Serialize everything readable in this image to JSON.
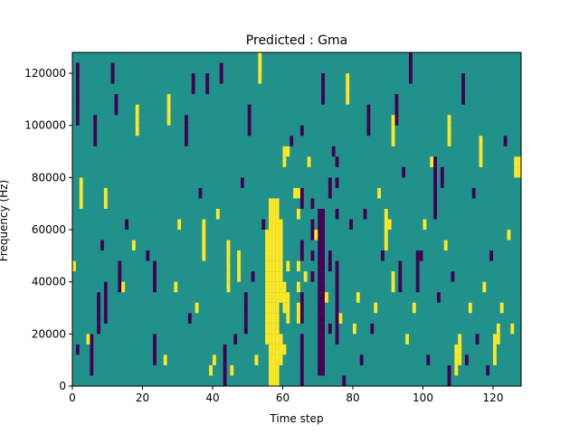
{
  "chart_data": {
    "type": "heatmap",
    "title": "Predicted : Gma",
    "xlabel": "Time step",
    "ylabel": "Frequency (Hz)",
    "xlim": [
      0,
      128
    ],
    "ylim": [
      0,
      128000
    ],
    "x_ticks": [
      0,
      20,
      40,
      60,
      80,
      100,
      120
    ],
    "y_ticks": [
      0,
      20000,
      40000,
      60000,
      80000,
      100000,
      120000
    ],
    "grid": false,
    "legend": "none",
    "colors": {
      "background_value": "#21918c",
      "low_value": "#440154",
      "high_value": "#fde725"
    },
    "cells": [
      {
        "t": 57,
        "f": [
          4000,
          8000,
          12000,
          16000,
          20000,
          24000,
          28000,
          32000,
          36000,
          40000,
          44000,
          48000,
          52000,
          56000,
          60000,
          64000,
          68000,
          72000
        ],
        "v": "high"
      },
      {
        "t": 58,
        "f": [
          4000,
          8000,
          12000,
          16000,
          20000,
          24000,
          28000,
          32000,
          36000,
          40000,
          44000,
          48000,
          52000,
          56000,
          60000,
          64000,
          68000,
          72000
        ],
        "v": "high"
      },
      {
        "t": 59,
        "f": [
          4000,
          8000,
          12000,
          16000,
          20000,
          24000,
          28000,
          32000,
          36000,
          40000,
          44000,
          48000,
          52000,
          56000,
          60000,
          64000,
          68000,
          72000
        ],
        "v": "high"
      },
      {
        "t": 56,
        "f": [
          20000,
          24000,
          28000,
          32000,
          36000,
          40000,
          44000,
          48000,
          52000,
          56000,
          60000
        ],
        "v": "high"
      },
      {
        "t": 60,
        "f": [
          12000,
          16000,
          20000,
          36000,
          40000,
          44000,
          48000,
          52000,
          56000,
          60000,
          64000
        ],
        "v": "high"
      },
      {
        "t": 61,
        "f": [
          16000,
          32000,
          36000,
          40000,
          88000,
          92000
        ],
        "v": "high"
      },
      {
        "t": 62,
        "f": [
          28000,
          32000,
          36000,
          48000,
          92000
        ],
        "v": "high"
      },
      {
        "t": 71,
        "f": [
          8000,
          12000,
          16000,
          20000,
          24000,
          28000,
          32000,
          36000,
          40000,
          44000,
          48000,
          52000,
          56000,
          60000,
          64000,
          68000
        ],
        "v": "low"
      },
      {
        "t": 72,
        "f": [
          8000,
          12000,
          16000,
          20000,
          24000,
          28000,
          32000,
          36000,
          40000,
          44000,
          48000,
          52000,
          56000,
          60000,
          64000,
          68000
        ],
        "v": "low"
      },
      {
        "t": 66,
        "f": [
          4000,
          8000,
          12000,
          16000,
          20000,
          28000,
          32000,
          36000,
          52000,
          56000,
          72000,
          76000,
          100000
        ],
        "v": "low"
      },
      {
        "t": 65,
        "f": [
          28000,
          32000,
          40000,
          48000,
          68000,
          76000
        ],
        "v": "high"
      },
      {
        "t": 69,
        "f": [
          44000,
          52000,
          60000,
          64000,
          72000
        ],
        "v": "low"
      },
      {
        "t": 74,
        "f": [
          24000,
          48000,
          52000,
          76000,
          80000
        ],
        "v": "low"
      },
      {
        "t": 76,
        "f": [
          20000,
          24000,
          28000,
          32000,
          36000,
          40000,
          44000,
          48000,
          68000,
          80000,
          88000
        ],
        "v": "low"
      },
      {
        "t": 6,
        "f": [
          8000,
          12000,
          16000,
          20000
        ],
        "v": "low"
      },
      {
        "t": 8,
        "f": [
          24000,
          28000,
          32000,
          36000
        ],
        "v": "low"
      },
      {
        "t": 10,
        "f": [
          28000,
          32000,
          36000,
          40000
        ],
        "v": "low"
      },
      {
        "t": 14,
        "f": [
          40000,
          44000,
          48000
        ],
        "v": "low"
      },
      {
        "t": 15,
        "f": [
          40000
        ],
        "v": "high"
      },
      {
        "t": 24,
        "f": [
          12000,
          16000,
          20000,
          40000,
          44000,
          48000
        ],
        "v": "low"
      },
      {
        "t": 44,
        "f": [
          4000,
          8000,
          12000,
          16000
        ],
        "v": "low"
      },
      {
        "t": 50,
        "f": [
          24000,
          28000,
          32000,
          36000
        ],
        "v": "low"
      },
      {
        "t": 48,
        "f": [
          44000,
          48000,
          52000
        ],
        "v": "high"
      },
      {
        "t": 38,
        "f": [
          52000,
          56000,
          60000,
          64000
        ],
        "v": "high"
      },
      {
        "t": 45,
        "f": [
          40000,
          44000,
          48000,
          52000,
          56000
        ],
        "v": "high"
      },
      {
        "t": 90,
        "f": [
          56000,
          60000,
          64000,
          68000
        ],
        "v": "high"
      },
      {
        "t": 91,
        "f": [
          64000
        ],
        "v": "high"
      },
      {
        "t": 92,
        "f": [
          40000,
          44000
        ],
        "v": "high"
      },
      {
        "t": 94,
        "f": [
          40000,
          44000,
          48000
        ],
        "v": "low"
      },
      {
        "t": 99,
        "f": [
          40000,
          44000,
          48000,
          52000
        ],
        "v": "low"
      },
      {
        "t": 104,
        "f": [
          68000,
          72000,
          76000,
          80000,
          84000,
          88000
        ],
        "v": "low"
      },
      {
        "t": 106,
        "f": [
          80000,
          84000
        ],
        "v": "low"
      },
      {
        "t": 108,
        "f": [
          4000,
          8000
        ],
        "v": "low"
      },
      {
        "t": 110,
        "f": [
          8000,
          12000,
          16000
        ],
        "v": "high"
      },
      {
        "t": 111,
        "f": [
          12000,
          16000,
          20000
        ],
        "v": "high"
      },
      {
        "t": 121,
        "f": [
          12000,
          16000,
          20000
        ],
        "v": "high"
      },
      {
        "t": 122,
        "f": [
          20000,
          24000
        ],
        "v": "high"
      },
      {
        "t": 128,
        "f": [
          84000,
          88000
        ],
        "v": "high"
      },
      {
        "t": 2,
        "f": [
          104000,
          108000,
          112000,
          116000,
          120000,
          124000
        ],
        "v": "low"
      },
      {
        "t": 3,
        "f": [
          72000,
          76000,
          80000
        ],
        "v": "high"
      },
      {
        "t": 7,
        "f": [
          96000,
          100000,
          104000
        ],
        "v": "low"
      },
      {
        "t": 10,
        "f": [
          72000,
          76000
        ],
        "v": "high"
      },
      {
        "t": 12,
        "f": [
          120000,
          124000
        ],
        "v": "low"
      },
      {
        "t": 13,
        "f": [
          108000,
          112000
        ],
        "v": "low"
      },
      {
        "t": 19,
        "f": [
          100000,
          104000,
          108000
        ],
        "v": "high"
      },
      {
        "t": 28,
        "f": [
          104000,
          108000,
          112000
        ],
        "v": "high"
      },
      {
        "t": 33,
        "f": [
          96000,
          100000,
          104000
        ],
        "v": "low"
      },
      {
        "t": 35,
        "f": [
          116000,
          120000
        ],
        "v": "low"
      },
      {
        "t": 39,
        "f": [
          116000,
          120000
        ],
        "v": "low"
      },
      {
        "t": 43,
        "f": [
          120000,
          124000
        ],
        "v": "low"
      },
      {
        "t": 51,
        "f": [
          100000,
          104000,
          108000
        ],
        "v": "low"
      },
      {
        "t": 54,
        "f": [
          120000,
          124000,
          128000
        ],
        "v": "high"
      },
      {
        "t": 72,
        "f": [
          112000,
          116000,
          120000
        ],
        "v": "low"
      },
      {
        "t": 79,
        "f": [
          112000,
          116000,
          120000
        ],
        "v": "high"
      },
      {
        "t": 85,
        "f": [
          100000,
          104000,
          108000
        ],
        "v": "low"
      },
      {
        "t": 92,
        "f": [
          96000,
          100000,
          104000
        ],
        "v": "high"
      },
      {
        "t": 93,
        "f": [
          104000,
          108000,
          112000
        ],
        "v": "low"
      },
      {
        "t": 97,
        "f": [
          120000,
          124000,
          128000
        ],
        "v": "low"
      },
      {
        "t": 108,
        "f": [
          96000,
          100000,
          104000
        ],
        "v": "high"
      },
      {
        "t": 112,
        "f": [
          112000,
          116000,
          120000
        ],
        "v": "low"
      },
      {
        "t": 117,
        "f": [
          88000,
          92000,
          96000
        ],
        "v": "high"
      },
      {
        "t": 127,
        "f": [
          84000,
          88000
        ],
        "v": "high"
      },
      {
        "t": 1,
        "f": [
          48000
        ],
        "v": "high"
      },
      {
        "t": 2,
        "f": [
          16000
        ],
        "v": "low"
      },
      {
        "t": 5,
        "f": [
          20000
        ],
        "v": "high"
      },
      {
        "t": 9,
        "f": [
          56000
        ],
        "v": "low"
      },
      {
        "t": 16,
        "f": [
          64000
        ],
        "v": "low"
      },
      {
        "t": 18,
        "f": [
          56000
        ],
        "v": "high"
      },
      {
        "t": 22,
        "f": [
          52000
        ],
        "v": "low"
      },
      {
        "t": 27,
        "f": [
          12000
        ],
        "v": "high"
      },
      {
        "t": 30,
        "f": [
          40000
        ],
        "v": "high"
      },
      {
        "t": 31,
        "f": [
          64000
        ],
        "v": "high"
      },
      {
        "t": 34,
        "f": [
          28000
        ],
        "v": "low"
      },
      {
        "t": 36,
        "f": [
          32000
        ],
        "v": "high"
      },
      {
        "t": 37,
        "f": [
          76000
        ],
        "v": "low"
      },
      {
        "t": 40,
        "f": [
          8000
        ],
        "v": "high"
      },
      {
        "t": 41,
        "f": [
          12000
        ],
        "v": "high"
      },
      {
        "t": 42,
        "f": [
          68000
        ],
        "v": "high"
      },
      {
        "t": 46,
        "f": [
          8000
        ],
        "v": "high"
      },
      {
        "t": 47,
        "f": [
          20000
        ],
        "v": "low"
      },
      {
        "t": 49,
        "f": [
          80000
        ],
        "v": "low"
      },
      {
        "t": 52,
        "f": [
          44000
        ],
        "v": "low"
      },
      {
        "t": 53,
        "f": [
          12000
        ],
        "v": "high"
      },
      {
        "t": 55,
        "f": [
          64000
        ],
        "v": "low"
      },
      {
        "t": 63,
        "f": [
          96000
        ],
        "v": "low"
      },
      {
        "t": 64,
        "f": [
          76000
        ],
        "v": "high"
      },
      {
        "t": 67,
        "f": [
          44000
        ],
        "v": "high"
      },
      {
        "t": 68,
        "f": [
          88000
        ],
        "v": "high"
      },
      {
        "t": 70,
        "f": [
          60000
        ],
        "v": "high"
      },
      {
        "t": 73,
        "f": [
          36000
        ],
        "v": "high"
      },
      {
        "t": 75,
        "f": [
          92000
        ],
        "v": "low"
      },
      {
        "t": 77,
        "f": [
          28000
        ],
        "v": "high"
      },
      {
        "t": 78,
        "f": [
          4000
        ],
        "v": "low"
      },
      {
        "t": 80,
        "f": [
          64000
        ],
        "v": "low"
      },
      {
        "t": 81,
        "f": [
          24000
        ],
        "v": "high"
      },
      {
        "t": 82,
        "f": [
          36000
        ],
        "v": "high"
      },
      {
        "t": 83,
        "f": [
          12000
        ],
        "v": "low"
      },
      {
        "t": 84,
        "f": [
          68000
        ],
        "v": "low"
      },
      {
        "t": 86,
        "f": [
          24000
        ],
        "v": "low"
      },
      {
        "t": 87,
        "f": [
          32000
        ],
        "v": "high"
      },
      {
        "t": 88,
        "f": [
          76000
        ],
        "v": "high"
      },
      {
        "t": 89,
        "f": [
          52000
        ],
        "v": "low"
      },
      {
        "t": 95,
        "f": [
          84000
        ],
        "v": "low"
      },
      {
        "t": 96,
        "f": [
          20000
        ],
        "v": "high"
      },
      {
        "t": 98,
        "f": [
          32000
        ],
        "v": "high"
      },
      {
        "t": 100,
        "f": [
          52000
        ],
        "v": "low"
      },
      {
        "t": 101,
        "f": [
          64000
        ],
        "v": "high"
      },
      {
        "t": 102,
        "f": [
          12000
        ],
        "v": "low"
      },
      {
        "t": 103,
        "f": [
          88000
        ],
        "v": "high"
      },
      {
        "t": 105,
        "f": [
          36000
        ],
        "v": "low"
      },
      {
        "t": 107,
        "f": [
          56000
        ],
        "v": "high"
      },
      {
        "t": 109,
        "f": [
          44000
        ],
        "v": "low"
      },
      {
        "t": 113,
        "f": [
          12000
        ],
        "v": "low"
      },
      {
        "t": 114,
        "f": [
          32000
        ],
        "v": "high"
      },
      {
        "t": 115,
        "f": [
          76000
        ],
        "v": "low"
      },
      {
        "t": 116,
        "f": [
          20000
        ],
        "v": "low"
      },
      {
        "t": 118,
        "f": [
          40000
        ],
        "v": "high"
      },
      {
        "t": 119,
        "f": [
          8000
        ],
        "v": "low"
      },
      {
        "t": 120,
        "f": [
          52000
        ],
        "v": "low"
      },
      {
        "t": 123,
        "f": [
          32000
        ],
        "v": "high"
      },
      {
        "t": 124,
        "f": [
          96000
        ],
        "v": "low"
      },
      {
        "t": 125,
        "f": [
          60000
        ],
        "v": "high"
      },
      {
        "t": 126,
        "f": [
          24000
        ],
        "v": "high"
      }
    ]
  }
}
